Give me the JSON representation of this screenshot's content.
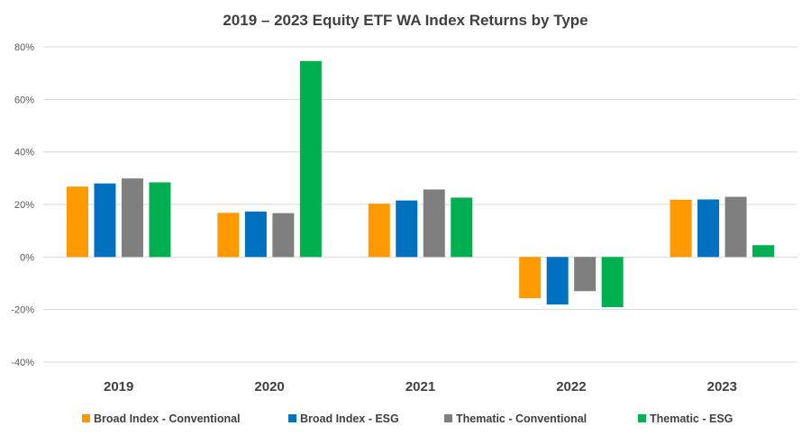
{
  "chart_data": {
    "type": "bar",
    "title": "2019 – 2023 Equity ETF WA Index Returns by Type",
    "xlabel": "",
    "ylabel": "",
    "ylim": [
      -40,
      80
    ],
    "yticks": [
      80,
      60,
      40,
      20,
      0,
      -20,
      -40
    ],
    "ytick_labels": [
      "80%",
      "60%",
      "40%",
      "20%",
      "0%",
      "-20%",
      "-40%"
    ],
    "grid": true,
    "legend_position": "bottom",
    "categories": [
      "2019",
      "2020",
      "2021",
      "2022",
      "2023"
    ],
    "series": [
      {
        "name": "Broad Index - Conventional",
        "color": "#ff9900",
        "values": [
          26.8,
          16.8,
          20.3,
          -15.7,
          21.8
        ]
      },
      {
        "name": "Broad Index - ESG",
        "color": "#0070c0",
        "values": [
          28.0,
          17.3,
          21.5,
          -18.1,
          21.9
        ]
      },
      {
        "name": "Thematic - Conventional",
        "color": "#7f7f7f",
        "values": [
          29.9,
          16.7,
          25.7,
          -13.0,
          22.9
        ]
      },
      {
        "name": "Thematic - ESG",
        "color": "#00b050",
        "values": [
          28.4,
          74.6,
          22.6,
          -19.1,
          4.5
        ]
      }
    ]
  }
}
